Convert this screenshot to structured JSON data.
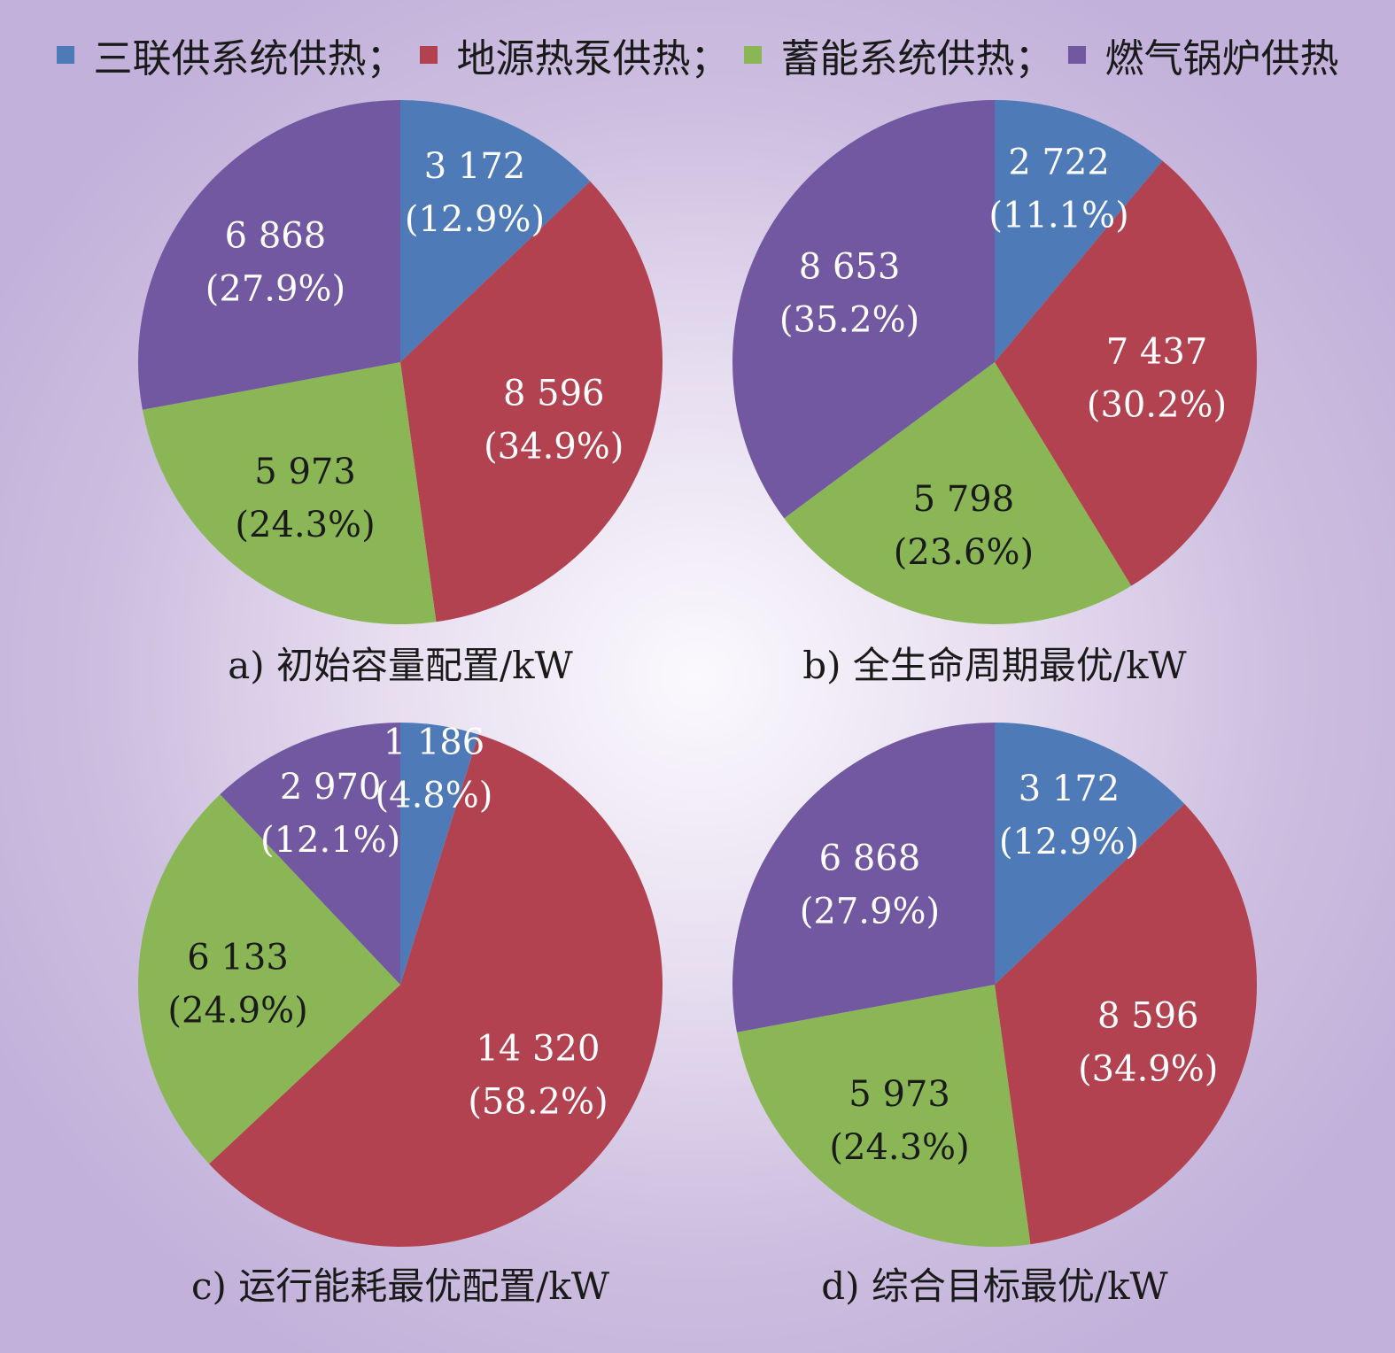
{
  "legend": [
    {
      "label": "三联供系统供热",
      "sep": "；"
    },
    {
      "label": "地源热泵供热",
      "sep": "；"
    },
    {
      "label": "蓄能系统供热",
      "sep": "；"
    },
    {
      "label": "燃气锅炉供热",
      "sep": ""
    }
  ],
  "colors": {
    "三联供系统供热": "#4f7ab8",
    "地源热泵供热": "#b24250",
    "蓄能系统供热": "#8ab655",
    "燃气锅炉供热": "#7158a1"
  },
  "label_colors": {
    "三联供系统供热": "#ffffff",
    "地源热泵供热": "#ffffff",
    "蓄能系统供热": "#1a1a1a",
    "燃气锅炉供热": "#ffffff"
  },
  "chart_data": [
    {
      "type": "pie",
      "title": "a) 初始容量配置/kW",
      "categories": [
        "三联供系统供热",
        "地源热泵供热",
        "蓄能系统供热",
        "燃气锅炉供热"
      ],
      "values": [
        3172,
        8596,
        5973,
        6868
      ],
      "value_labels": [
        "3 172",
        "8 596",
        "5 973",
        "6 868"
      ],
      "percent_labels": [
        "(12.9%)",
        "(34.9%)",
        "(24.3%)",
        "(27.9%)"
      ]
    },
    {
      "type": "pie",
      "title": "b) 全生命周期最优/kW",
      "categories": [
        "三联供系统供热",
        "地源热泵供热",
        "蓄能系统供热",
        "燃气锅炉供热"
      ],
      "values": [
        2722,
        7437,
        5798,
        8653
      ],
      "value_labels": [
        "2 722",
        "7 437",
        "5 798",
        "8 653"
      ],
      "percent_labels": [
        "(11.1%)",
        "(30.2%)",
        "(23.6%)",
        "(35.2%)"
      ]
    },
    {
      "type": "pie",
      "title": "c) 运行能耗最优配置/kW",
      "categories": [
        "三联供系统供热",
        "地源热泵供热",
        "蓄能系统供热",
        "燃气锅炉供热"
      ],
      "values": [
        1186,
        14320,
        6133,
        2970
      ],
      "value_labels": [
        "1 186",
        "14 320",
        "6 133",
        "2 970"
      ],
      "percent_labels": [
        "(4.8%)",
        "(58.2%)",
        "(24.9%)",
        "(12.1%)"
      ]
    },
    {
      "type": "pie",
      "title": "d) 综合目标最优/kW",
      "categories": [
        "三联供系统供热",
        "地源热泵供热",
        "蓄能系统供热",
        "燃气锅炉供热"
      ],
      "values": [
        3172,
        8596,
        5973,
        6868
      ],
      "value_labels": [
        "3 172",
        "8 596",
        "5 973",
        "6 868"
      ],
      "percent_labels": [
        "(12.9%)",
        "(34.9%)",
        "(24.3%)",
        "(27.9%)"
      ]
    }
  ]
}
